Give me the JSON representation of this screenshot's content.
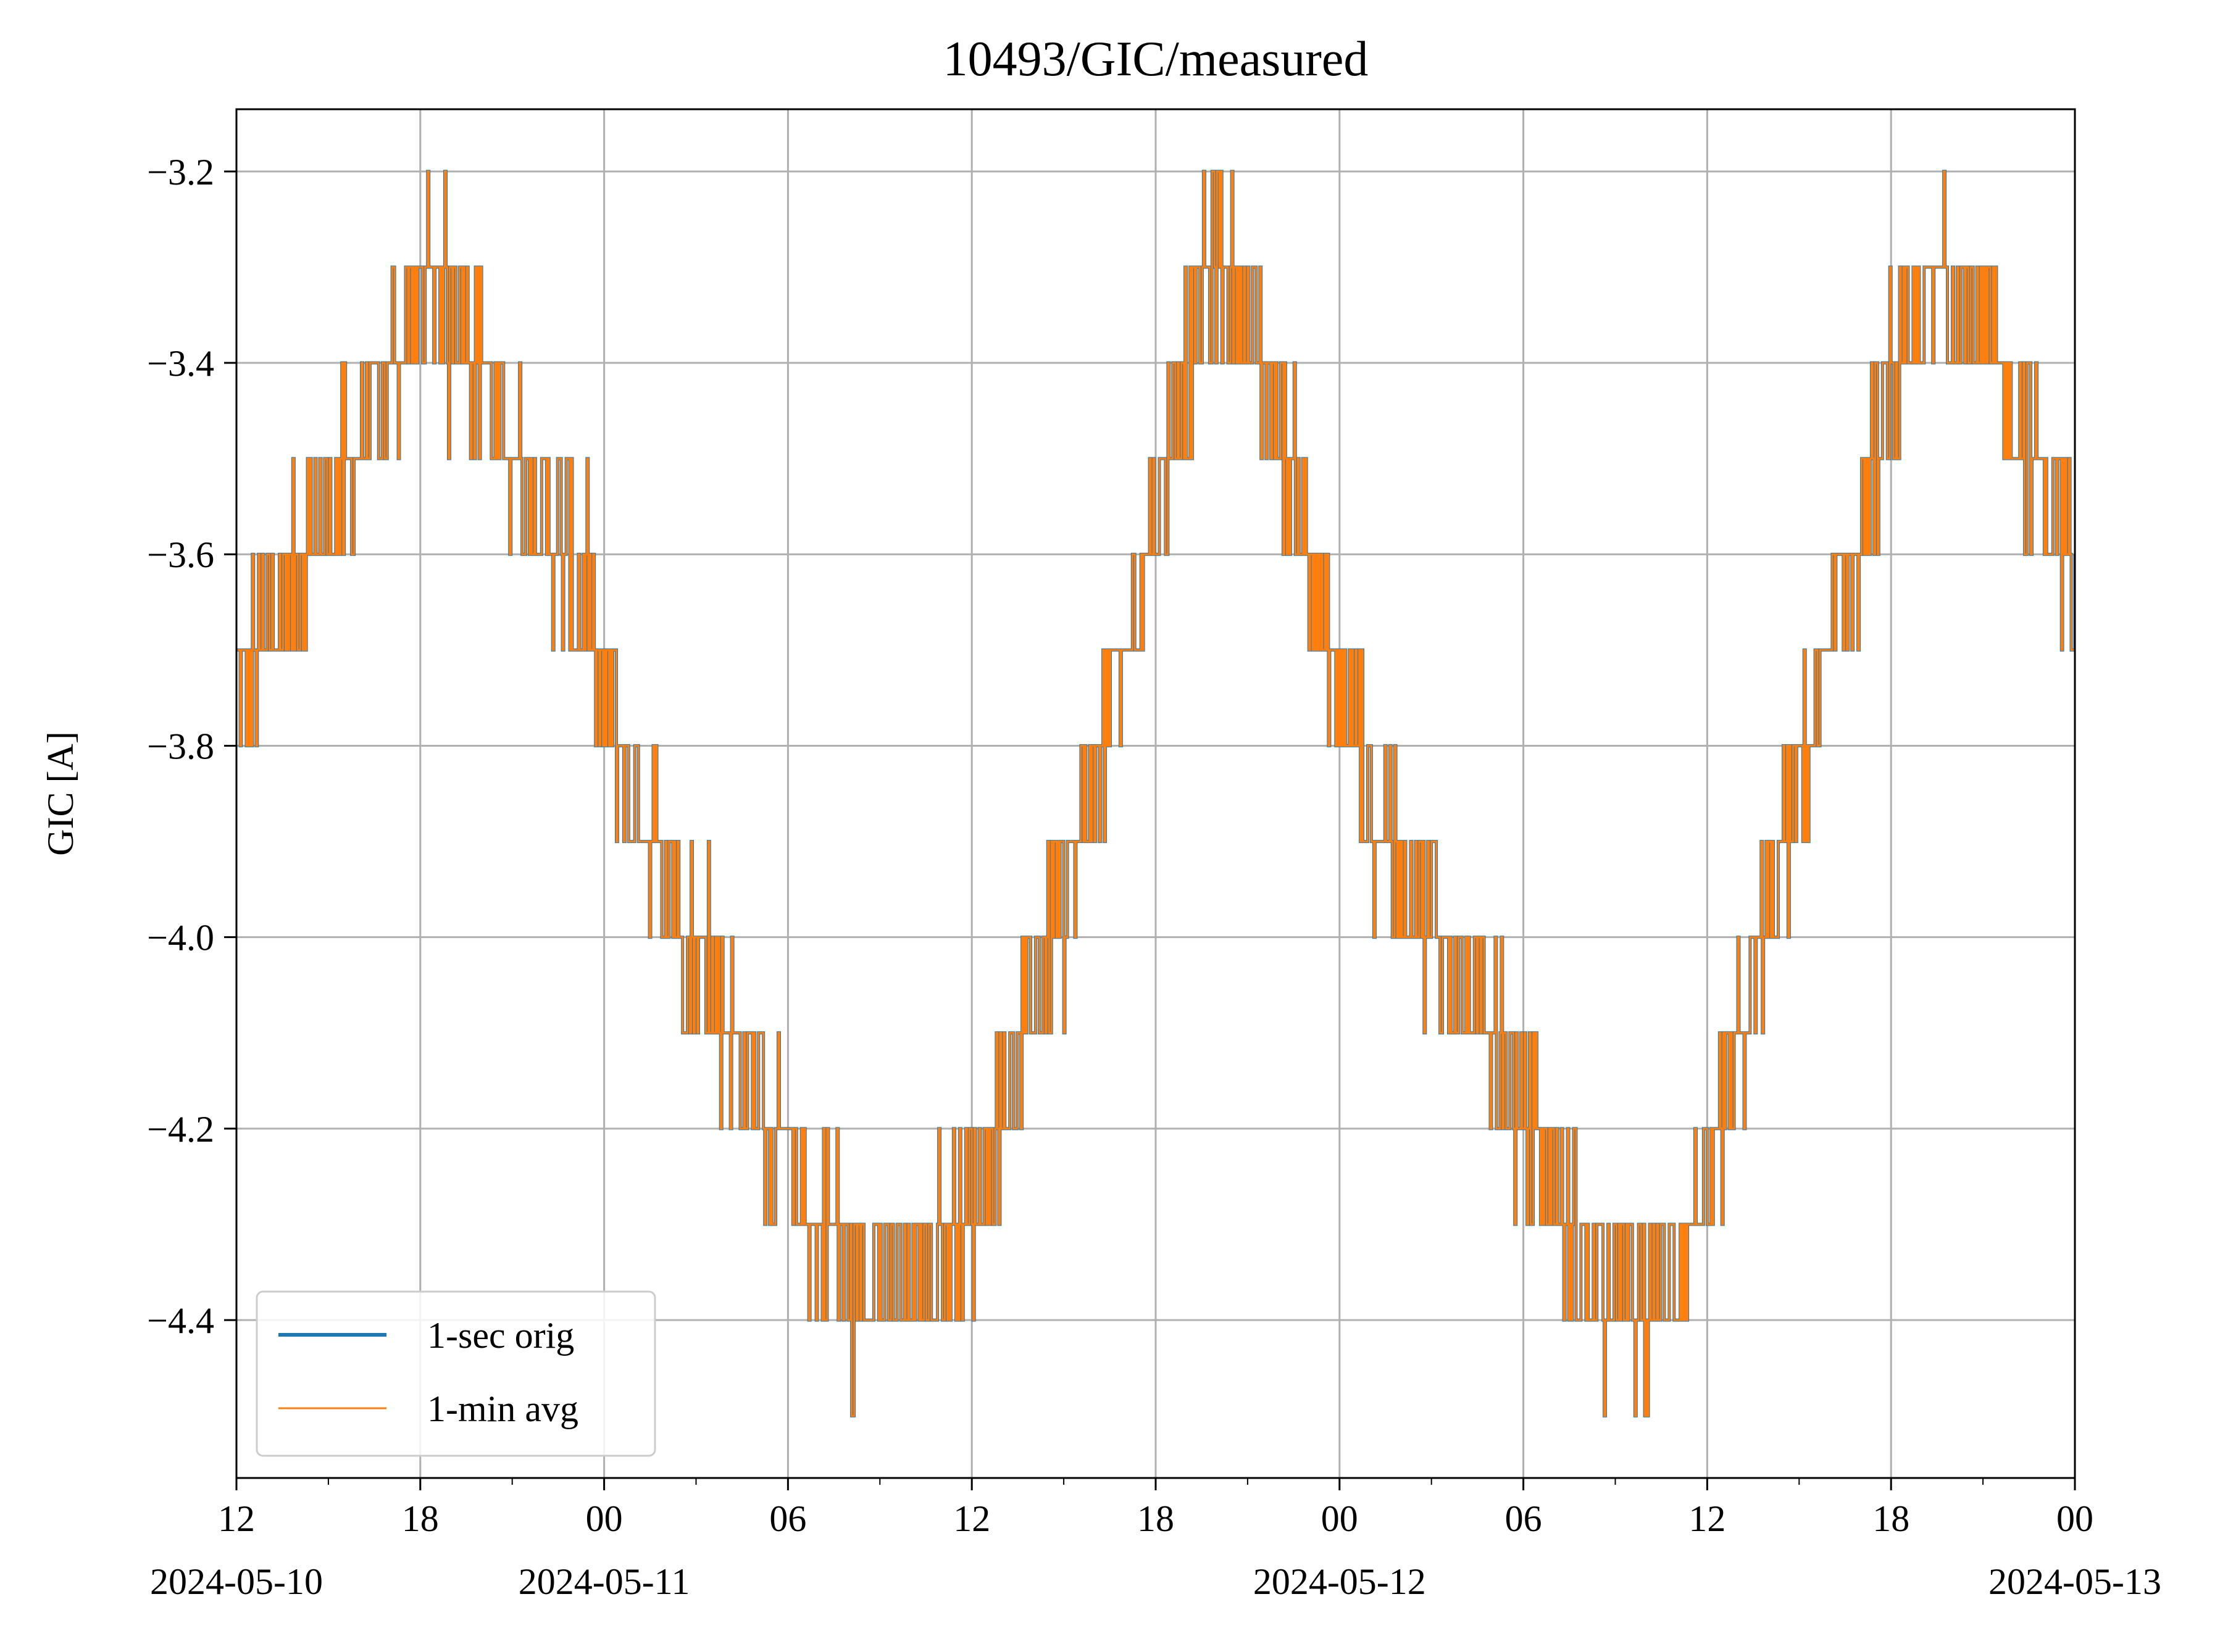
{
  "chart_data": {
    "type": "line",
    "title": "10493/GIC/measured",
    "xlabel": "",
    "ylabel": "GIC [A]",
    "x_unit": "datetime",
    "xlim": [
      "2024-05-10T12:00",
      "2024-05-13T00:00"
    ],
    "ylim": [
      -4.565,
      -3.135
    ],
    "grid": true,
    "legend_position": "lower-left",
    "y_ticks": [
      -3.2,
      -3.4,
      -3.6,
      -3.8,
      -4.0,
      -4.2,
      -4.4
    ],
    "y_tick_labels": [
      "−3.2",
      "−3.4",
      "−3.6",
      "−3.8",
      "−4.0",
      "−4.2",
      "−4.4"
    ],
    "x_ticks": [
      {
        "value": "2024-05-10T12:00",
        "label": "12",
        "date_label": "2024-05-10"
      },
      {
        "value": "2024-05-10T18:00",
        "label": "18",
        "date_label": ""
      },
      {
        "value": "2024-05-11T00:00",
        "label": "00",
        "date_label": "2024-05-11"
      },
      {
        "value": "2024-05-11T06:00",
        "label": "06",
        "date_label": ""
      },
      {
        "value": "2024-05-11T12:00",
        "label": "12",
        "date_label": ""
      },
      {
        "value": "2024-05-11T18:00",
        "label": "18",
        "date_label": ""
      },
      {
        "value": "2024-05-12T00:00",
        "label": "00",
        "date_label": "2024-05-12"
      },
      {
        "value": "2024-05-12T06:00",
        "label": "06",
        "date_label": ""
      },
      {
        "value": "2024-05-12T12:00",
        "label": "12",
        "date_label": ""
      },
      {
        "value": "2024-05-12T18:00",
        "label": "18",
        "date_label": ""
      },
      {
        "value": "2024-05-13T00:00",
        "label": "00",
        "date_label": "2024-05-13"
      }
    ],
    "series": [
      {
        "name": "1-sec orig",
        "color": "#1f77b4",
        "x": [
          "2024-05-10T12:00",
          "2024-05-10T13:00",
          "2024-05-10T14:00",
          "2024-05-10T15:00",
          "2024-05-10T16:00",
          "2024-05-10T17:00",
          "2024-05-10T18:00",
          "2024-05-10T19:00",
          "2024-05-10T20:00",
          "2024-05-10T21:00",
          "2024-05-10T22:00",
          "2024-05-10T23:00",
          "2024-05-11T00:00",
          "2024-05-11T01:00",
          "2024-05-11T02:00",
          "2024-05-11T03:00",
          "2024-05-11T04:00",
          "2024-05-11T05:00",
          "2024-05-11T06:00",
          "2024-05-11T07:00",
          "2024-05-11T08:00",
          "2024-05-11T09:00",
          "2024-05-11T10:00",
          "2024-05-11T11:00",
          "2024-05-11T12:00",
          "2024-05-11T13:00",
          "2024-05-11T14:00",
          "2024-05-11T15:00",
          "2024-05-11T16:00",
          "2024-05-11T17:00",
          "2024-05-11T18:00",
          "2024-05-11T19:00",
          "2024-05-11T20:00",
          "2024-05-11T21:00",
          "2024-05-11T22:00",
          "2024-05-11T23:00",
          "2024-05-12T00:00",
          "2024-05-12T01:00",
          "2024-05-12T02:00",
          "2024-05-12T03:00",
          "2024-05-12T04:00",
          "2024-05-12T05:00",
          "2024-05-12T06:00",
          "2024-05-12T07:00",
          "2024-05-12T08:00",
          "2024-05-12T09:00",
          "2024-05-12T10:00",
          "2024-05-12T11:00",
          "2024-05-12T12:00",
          "2024-05-12T13:00",
          "2024-05-12T14:00",
          "2024-05-12T15:00",
          "2024-05-12T16:00",
          "2024-05-12T17:00",
          "2024-05-12T18:00",
          "2024-05-12T19:00",
          "2024-05-12T20:00",
          "2024-05-12T21:00",
          "2024-05-12T22:00",
          "2024-05-12T23:00",
          "2024-05-13T00:00"
        ],
        "y": [
          -3.75,
          -3.68,
          -3.62,
          -3.55,
          -3.48,
          -3.4,
          -3.33,
          -3.32,
          -3.4,
          -3.5,
          -3.55,
          -3.62,
          -3.75,
          -3.85,
          -3.93,
          -4.03,
          -4.1,
          -4.18,
          -4.25,
          -4.3,
          -4.33,
          -4.35,
          -4.37,
          -4.33,
          -4.28,
          -4.18,
          -4.07,
          -3.95,
          -3.83,
          -3.7,
          -3.55,
          -3.4,
          -3.28,
          -3.35,
          -3.45,
          -3.6,
          -3.75,
          -3.85,
          -3.93,
          -3.98,
          -4.05,
          -4.12,
          -4.2,
          -4.27,
          -4.33,
          -4.37,
          -4.38,
          -4.35,
          -4.25,
          -4.13,
          -3.98,
          -3.83,
          -3.7,
          -3.58,
          -3.45,
          -3.35,
          -3.33,
          -3.37,
          -3.45,
          -3.53,
          -3.62
        ]
      },
      {
        "name": "1-min avg",
        "color": "#ff7f0e"
      }
    ]
  }
}
